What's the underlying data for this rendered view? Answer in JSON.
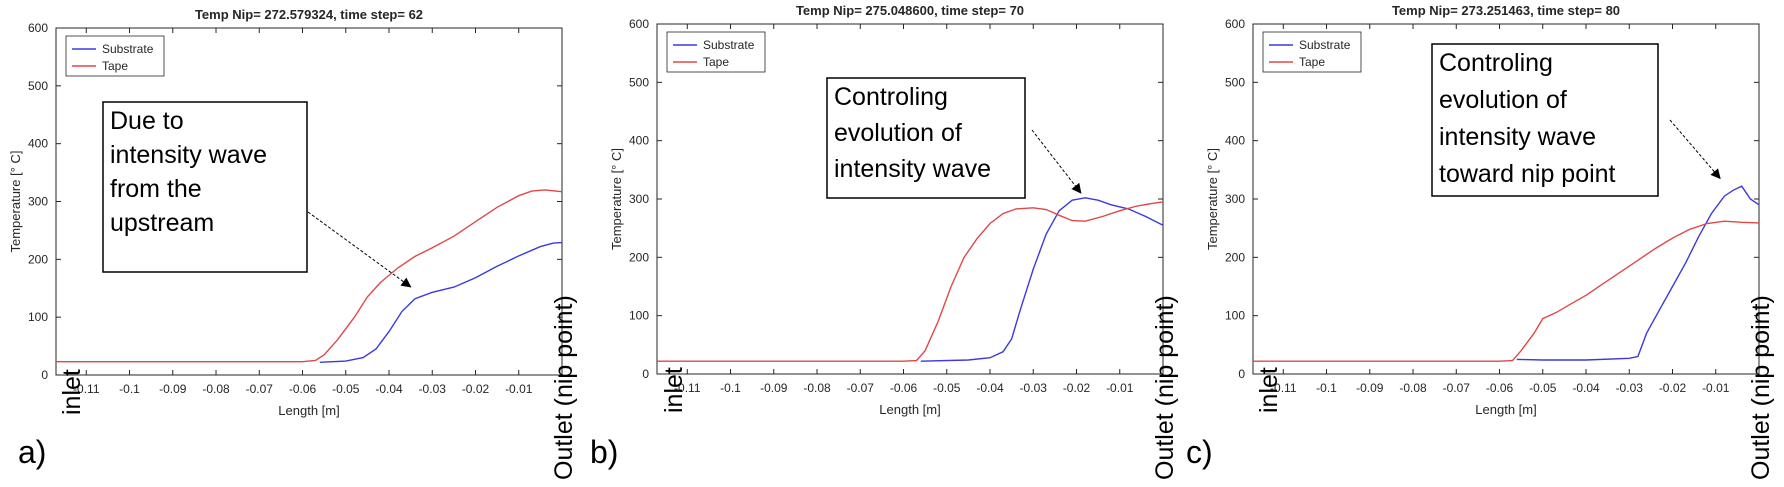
{
  "colors": {
    "substrate": "#3a3ae0",
    "tape": "#e04848",
    "axis": "#262626",
    "annotation": "#000000"
  },
  "chart_data": [
    {
      "type": "line",
      "panel": "a)",
      "title": "Temp Nip= 272.579324, time step= 62",
      "xlabel": "Length [m]",
      "ylabel": "Temperature [° C]",
      "xlim": [
        -0.117,
        0
      ],
      "ylim": [
        0,
        600
      ],
      "xticks": [
        "-0.11",
        "-0.1",
        "-0.09",
        "-0.08",
        "-0.07",
        "-0.06",
        "-0.05",
        "-0.04",
        "-0.03",
        "-0.02",
        "-0.01"
      ],
      "xtick_values": [
        -0.11,
        -0.1,
        -0.09,
        -0.08,
        -0.07,
        -0.06,
        -0.05,
        -0.04,
        -0.03,
        -0.02,
        -0.01
      ],
      "yticks": [
        "0",
        "100",
        "200",
        "300",
        "400",
        "500",
        "600"
      ],
      "ytick_values": [
        0,
        100,
        200,
        300,
        400,
        500,
        600
      ],
      "legend": [
        "Substrate",
        "Tape"
      ],
      "series": [
        {
          "name": "Substrate",
          "color": "#3a3ae0",
          "x": [
            -0.056,
            -0.05,
            -0.046,
            -0.043,
            -0.04,
            -0.037,
            -0.034,
            -0.03,
            -0.025,
            -0.02,
            -0.015,
            -0.01,
            -0.005,
            -0.002,
            0
          ],
          "y": [
            22,
            24,
            30,
            45,
            75,
            110,
            132,
            143,
            152,
            168,
            188,
            206,
            222,
            228,
            229
          ]
        },
        {
          "name": "Tape",
          "color": "#e04848",
          "x": [
            -0.117,
            -0.1,
            -0.08,
            -0.06,
            -0.057,
            -0.055,
            -0.052,
            -0.048,
            -0.045,
            -0.042,
            -0.038,
            -0.034,
            -0.03,
            -0.025,
            -0.02,
            -0.015,
            -0.01,
            -0.007,
            -0.004,
            0
          ],
          "y": [
            23,
            23,
            23,
            23,
            25,
            35,
            60,
            100,
            135,
            160,
            185,
            205,
            220,
            240,
            265,
            290,
            310,
            318,
            320,
            317
          ]
        }
      ],
      "annotations": [
        {
          "lines": [
            "Due to",
            "intensity wave",
            "from the",
            "upstream"
          ],
          "arrow_to": [
            -0.035,
            142
          ]
        }
      ],
      "edge_labels": {
        "left": "inlet",
        "right": "Outlet (nip point)"
      }
    },
    {
      "type": "line",
      "panel": "b)",
      "title": "Temp Nip= 275.048600, time step= 70",
      "xlabel": "Length [m]",
      "ylabel": "Temperature [° C]",
      "xlim": [
        -0.117,
        0
      ],
      "ylim": [
        0,
        600
      ],
      "xticks": [
        "-0.11",
        "-0.1",
        "-0.09",
        "-0.08",
        "-0.07",
        "-0.06",
        "-0.05",
        "-0.04",
        "-0.03",
        "-0.02",
        "-0.01"
      ],
      "xtick_values": [
        -0.11,
        -0.1,
        -0.09,
        -0.08,
        -0.07,
        -0.06,
        -0.05,
        -0.04,
        -0.03,
        -0.02,
        -0.01
      ],
      "yticks": [
        "0",
        "100",
        "200",
        "300",
        "400",
        "500",
        "600"
      ],
      "ytick_values": [
        0,
        100,
        200,
        300,
        400,
        500,
        600
      ],
      "legend": [
        "Substrate",
        "Tape"
      ],
      "series": [
        {
          "name": "Substrate",
          "color": "#3a3ae0",
          "x": [
            -0.056,
            -0.045,
            -0.04,
            -0.037,
            -0.035,
            -0.033,
            -0.03,
            -0.027,
            -0.024,
            -0.021,
            -0.018,
            -0.015,
            -0.012,
            -0.008,
            -0.004,
            0
          ],
          "y": [
            22,
            24,
            28,
            38,
            60,
            110,
            180,
            240,
            280,
            298,
            302,
            298,
            290,
            283,
            270,
            255
          ]
        },
        {
          "name": "Tape",
          "color": "#e04848",
          "x": [
            -0.117,
            -0.1,
            -0.08,
            -0.06,
            -0.057,
            -0.055,
            -0.052,
            -0.049,
            -0.046,
            -0.043,
            -0.04,
            -0.037,
            -0.034,
            -0.03,
            -0.027,
            -0.024,
            -0.021,
            -0.018,
            -0.014,
            -0.01,
            -0.006,
            -0.002,
            0
          ],
          "y": [
            22,
            22,
            22,
            22,
            23,
            40,
            90,
            150,
            200,
            232,
            258,
            275,
            283,
            285,
            282,
            272,
            263,
            262,
            270,
            280,
            288,
            293,
            295
          ]
        }
      ],
      "annotations": [
        {
          "lines": [
            "Controling",
            "evolution of",
            "intensity wave"
          ],
          "arrow_to": [
            -0.019,
            300
          ]
        }
      ],
      "edge_labels": {
        "left": "inlet",
        "right": "Outlet (nip point)"
      }
    },
    {
      "type": "line",
      "panel": "c)",
      "title": "Temp Nip= 273.251463, time step= 80",
      "xlabel": "Length [m]",
      "ylabel": "Temperature [° C]",
      "xlim": [
        -0.117,
        0
      ],
      "ylim": [
        0,
        600
      ],
      "xticks": [
        "-0.11",
        "-0.1",
        "-0.09",
        "-0.08",
        "-0.07",
        "-0.06",
        "-0.05",
        "-0.04",
        "-0.03",
        "-0.02",
        "-0.01"
      ],
      "xtick_values": [
        -0.11,
        -0.1,
        -0.09,
        -0.08,
        -0.07,
        -0.06,
        -0.05,
        -0.04,
        -0.03,
        -0.02,
        -0.01
      ],
      "yticks": [
        "0",
        "100",
        "200",
        "300",
        "400",
        "500",
        "600"
      ],
      "ytick_values": [
        0,
        100,
        200,
        300,
        400,
        500,
        600
      ],
      "legend": [
        "Substrate",
        "Tape"
      ],
      "series": [
        {
          "name": "Substrate",
          "color": "#3a3ae0",
          "x": [
            -0.056,
            -0.05,
            -0.04,
            -0.03,
            -0.028,
            -0.026,
            -0.023,
            -0.02,
            -0.017,
            -0.014,
            -0.011,
            -0.008,
            -0.006,
            -0.004,
            -0.002,
            0
          ],
          "y": [
            25,
            24,
            24,
            27,
            30,
            70,
            110,
            150,
            190,
            235,
            275,
            305,
            315,
            322,
            300,
            290
          ]
        },
        {
          "name": "Tape",
          "color": "#e04848",
          "x": [
            -0.117,
            -0.1,
            -0.08,
            -0.06,
            -0.057,
            -0.055,
            -0.052,
            -0.05,
            -0.047,
            -0.044,
            -0.04,
            -0.036,
            -0.032,
            -0.028,
            -0.024,
            -0.02,
            -0.016,
            -0.012,
            -0.008,
            -0.004,
            0
          ],
          "y": [
            22,
            22,
            22,
            22,
            23,
            40,
            70,
            95,
            105,
            118,
            135,
            155,
            175,
            195,
            215,
            233,
            248,
            258,
            262,
            260,
            259
          ]
        }
      ],
      "annotations": [
        {
          "lines": [
            "Controling",
            "evolution of",
            "intensity wave",
            "toward nip point"
          ],
          "arrow_to": [
            -0.009,
            325
          ]
        }
      ],
      "edge_labels": {
        "left": "inlet",
        "right": "Outlet (nip point)"
      }
    }
  ]
}
